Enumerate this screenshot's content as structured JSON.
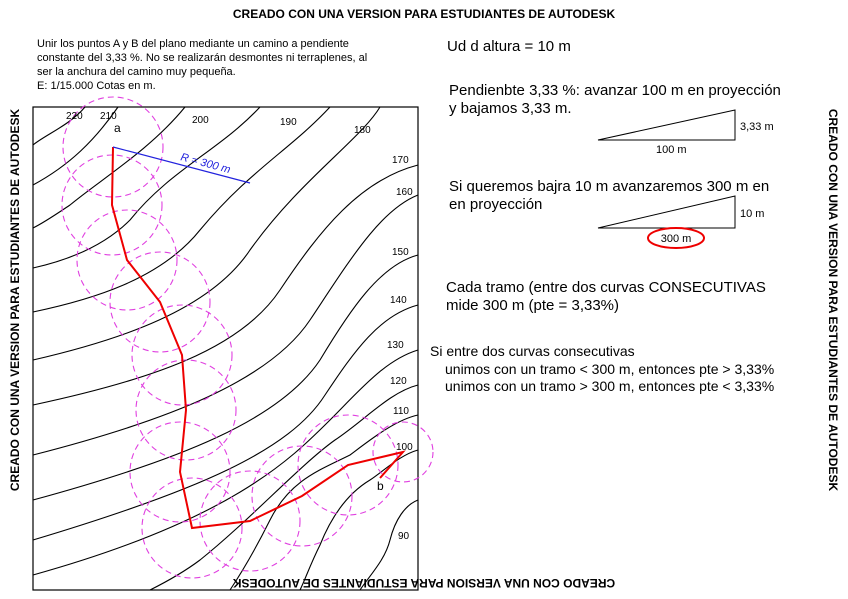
{
  "watermark": "CREADO CON UNA VERSION PARA ESTUDIANTES DE AUTODESK",
  "problem": {
    "lines": [
      "Unir los puntos A y B del plano mediante un camino a pendiente",
      "constante del 3,33 %. No se realizarán desmontes ni terraplenes, al",
      "ser la anchura del camino muy pequeña.",
      "E: 1/15.000  Cotas en m."
    ]
  },
  "map": {
    "contour_labels": [
      "220",
      "210",
      "200",
      "190",
      "180",
      "170",
      "160",
      "150",
      "140",
      "130",
      "120",
      "110",
      "100",
      "90"
    ],
    "point_a": "a",
    "point_b": "b",
    "radius_label": "R  =  300  m"
  },
  "notes": {
    "height": "Ud d altura = 10 m",
    "slope": [
      "Pendienbte 3,33 %: avanzar 100 m en proyección",
      "y bajamos 3,33 m."
    ],
    "triangle1": {
      "base": "100 m",
      "height": "3,33 m"
    },
    "descend": [
      "Si queremos bajra 10 m avanzaremos 300 m en",
      "en proyección"
    ],
    "triangle2": {
      "base": "300 m",
      "height": "10 m"
    },
    "segment": [
      "Cada tramo (entre dos curvas CONSECUTIVAS",
      "mide 300 m (pte = 3,33%)"
    ],
    "rule": [
      "Si entre dos curvas consecutivas",
      "unimos con un tramo < 300 m, entonces pte > 3,33%",
      "unimos con un tramo > 300 m, entonces pte < 3,33%"
    ]
  }
}
